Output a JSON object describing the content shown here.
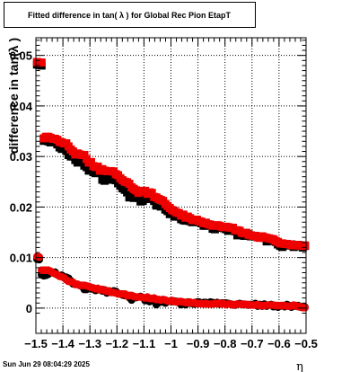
{
  "chart_data": {
    "type": "scatter",
    "title": "Fitted difference in tan( λ ) for Global Rec Pion EtapT",
    "xlabel": "η",
    "ylabel": "difference in tan(λ )",
    "xlim": [
      -1.5,
      -0.5
    ],
    "ylim": [
      -0.005,
      0.0535
    ],
    "x_ticks": [
      -1.5,
      -1.4,
      -1.3,
      -1.2,
      -1.1,
      -1.0,
      -0.9,
      -0.8,
      -0.7,
      -0.6,
      -0.5
    ],
    "x_tick_labels": [
      "−1.5",
      "−1.4",
      "−1.3",
      "−1.2",
      "−1.1",
      "−1",
      "−0.9",
      "−0.8",
      "−0.7",
      "−0.6",
      "−0.5"
    ],
    "y_ticks": [
      0,
      0.01,
      0.02,
      0.03,
      0.04,
      0.05
    ],
    "y_tick_labels": [
      "0",
      "0.01",
      "0.02",
      "0.03",
      "0.04",
      "0.05"
    ],
    "grid": true,
    "legend": "none",
    "series": [
      {
        "marker": "square",
        "color": "#000000",
        "x": [
          -1.4958,
          -1.4875,
          -1.4792,
          -1.4708,
          -1.4625,
          -1.4542,
          -1.4458,
          -1.4375,
          -1.4292,
          -1.4208,
          -1.4125,
          -1.4042,
          -1.3958,
          -1.3875,
          -1.3792,
          -1.3708,
          -1.3625,
          -1.3542,
          -1.3458,
          -1.3375,
          -1.3292,
          -1.3208,
          -1.3125,
          -1.3042,
          -1.2958,
          -1.2875,
          -1.2792,
          -1.2708,
          -1.2625,
          -1.2542,
          -1.2458,
          -1.2375,
          -1.2292,
          -1.2208,
          -1.2125,
          -1.2042,
          -1.1958,
          -1.1875,
          -1.1792,
          -1.1708,
          -1.1625,
          -1.1542,
          -1.1458,
          -1.1375,
          -1.1292,
          -1.1208,
          -1.1125,
          -1.1042,
          -1.0958,
          -1.0875,
          -1.0792,
          -1.0708,
          -1.0625,
          -1.0542,
          -1.0458,
          -1.0375,
          -1.0292,
          -1.0208,
          -1.0125,
          -1.0042,
          -0.9958,
          -0.9875,
          -0.9792,
          -0.9708,
          -0.9625,
          -0.9542,
          -0.9458,
          -0.9375,
          -0.9292,
          -0.9208,
          -0.9125,
          -0.9042,
          -0.8958,
          -0.8875,
          -0.8792,
          -0.8708,
          -0.8625,
          -0.8542,
          -0.8458,
          -0.8375,
          -0.8292,
          -0.8208,
          -0.8125,
          -0.8042,
          -0.7958,
          -0.7875,
          -0.7792,
          -0.7708,
          -0.7625,
          -0.7542,
          -0.7458,
          -0.7375,
          -0.7292,
          -0.7208,
          -0.7125,
          -0.7042,
          -0.6958,
          -0.6875,
          -0.6792,
          -0.6708,
          -0.6625,
          -0.6542,
          -0.6458,
          -0.6375,
          -0.6292,
          -0.6208,
          -0.6125,
          -0.6042,
          -0.5958,
          -0.5875,
          -0.5792,
          -0.5708,
          -0.5625,
          -0.5542,
          -0.5458,
          -0.5375,
          -0.5292,
          -0.5208,
          -0.5125,
          -0.5042
        ],
        "y": [
          0.0482,
          0.0481,
          0.048,
          0.0331,
          0.0334,
          0.033,
          0.0328,
          0.0331,
          0.0329,
          0.0324,
          0.0318,
          0.0315,
          0.0316,
          0.0311,
          0.0303,
          0.03,
          0.03,
          0.0293,
          0.0288,
          0.0295,
          0.0292,
          0.0282,
          0.0279,
          0.0272,
          0.0274,
          0.0269,
          0.0267,
          0.0268,
          0.0269,
          0.0254,
          0.0252,
          0.0255,
          0.0255,
          0.0254,
          0.0255,
          0.0253,
          0.0247,
          0.0242,
          0.0237,
          0.0234,
          0.0229,
          0.0219,
          0.022,
          0.0218,
          0.0221,
          0.0218,
          0.0211,
          0.0212,
          0.0216,
          0.0217,
          0.0219,
          0.0216,
          0.0212,
          0.0203,
          0.0204,
          0.0201,
          0.0203,
          0.0195,
          0.0192,
          0.0186,
          0.0187,
          0.0181,
          0.0185,
          0.0181,
          0.0176,
          0.0174,
          0.0173,
          0.0176,
          0.0172,
          0.017,
          0.0174,
          0.0173,
          0.017,
          0.0168,
          0.0163,
          0.0163,
          0.0165,
          0.0165,
          0.0157,
          0.0156,
          0.0159,
          0.0159,
          0.0159,
          0.0158,
          0.0156,
          0.0153,
          0.0156,
          0.0156,
          0.0152,
          0.0144,
          0.015,
          0.0147,
          0.0143,
          0.0144,
          0.0146,
          0.0142,
          0.0142,
          0.0142,
          0.0141,
          0.0142,
          0.0141,
          0.0139,
          0.0132,
          0.0133,
          0.0135,
          0.0134,
          0.0131,
          0.0126,
          0.0123,
          0.0121,
          0.0126,
          0.0124,
          0.0124,
          0.0126,
          0.0121,
          0.0123,
          0.0125,
          0.0123,
          0.012,
          0.0123
        ]
      },
      {
        "marker": "square",
        "color": "#ee0000",
        "x": [
          -1.4958,
          -1.4875,
          -1.4792,
          -1.4708,
          -1.4625,
          -1.4542,
          -1.4458,
          -1.4375,
          -1.4292,
          -1.4208,
          -1.4125,
          -1.4042,
          -1.3958,
          -1.3875,
          -1.3792,
          -1.3708,
          -1.3625,
          -1.3542,
          -1.3458,
          -1.3375,
          -1.3292,
          -1.3208,
          -1.3125,
          -1.3042,
          -1.2958,
          -1.2875,
          -1.2792,
          -1.2708,
          -1.2625,
          -1.2542,
          -1.2458,
          -1.2375,
          -1.2292,
          -1.2208,
          -1.2125,
          -1.2042,
          -1.1958,
          -1.1875,
          -1.1792,
          -1.1708,
          -1.1625,
          -1.1542,
          -1.1458,
          -1.1375,
          -1.1292,
          -1.1208,
          -1.1125,
          -1.1042,
          -1.0958,
          -1.0875,
          -1.0792,
          -1.0708,
          -1.0625,
          -1.0542,
          -1.0458,
          -1.0375,
          -1.0292,
          -1.0208,
          -1.0125,
          -1.0042,
          -0.9958,
          -0.9875,
          -0.9792,
          -0.9708,
          -0.9625,
          -0.9542,
          -0.9458,
          -0.9375,
          -0.9292,
          -0.9208,
          -0.9125,
          -0.9042,
          -0.8958,
          -0.8875,
          -0.8792,
          -0.8708,
          -0.8625,
          -0.8542,
          -0.8458,
          -0.8375,
          -0.8292,
          -0.8208,
          -0.8125,
          -0.8042,
          -0.7958,
          -0.7875,
          -0.7792,
          -0.7708,
          -0.7625,
          -0.7542,
          -0.7458,
          -0.7375,
          -0.7292,
          -0.7208,
          -0.7125,
          -0.7042,
          -0.6958,
          -0.6875,
          -0.6792,
          -0.6708,
          -0.6625,
          -0.6542,
          -0.6458,
          -0.6375,
          -0.6292,
          -0.6208,
          -0.6125,
          -0.6042,
          -0.5958,
          -0.5875,
          -0.5792,
          -0.5708,
          -0.5625,
          -0.5542,
          -0.5458,
          -0.5375,
          -0.5292,
          -0.5208,
          -0.5125,
          -0.5042
        ],
        "y": [
          0.0487,
          0.0486,
          0.0486,
          0.0336,
          0.0339,
          0.0339,
          0.0337,
          0.0335,
          0.0335,
          0.0333,
          0.0329,
          0.0328,
          0.0326,
          0.0326,
          0.032,
          0.0314,
          0.031,
          0.0304,
          0.0306,
          0.0304,
          0.0303,
          0.0303,
          0.0295,
          0.0288,
          0.0289,
          0.0281,
          0.0279,
          0.028,
          0.0272,
          0.0275,
          0.0272,
          0.0271,
          0.0271,
          0.0271,
          0.027,
          0.0265,
          0.0263,
          0.0257,
          0.0253,
          0.025,
          0.0249,
          0.0246,
          0.0239,
          0.0236,
          0.0233,
          0.0228,
          0.0231,
          0.0232,
          0.0232,
          0.0226,
          0.0229,
          0.0228,
          0.022,
          0.0219,
          0.0216,
          0.0214,
          0.0212,
          0.0206,
          0.0202,
          0.0198,
          0.0194,
          0.0192,
          0.0189,
          0.0188,
          0.0183,
          0.0185,
          0.0179,
          0.0181,
          0.0178,
          0.0174,
          0.0175,
          0.0175,
          0.0172,
          0.0171,
          0.0168,
          0.0169,
          0.0166,
          0.0165,
          0.0163,
          0.0163,
          0.0164,
          0.0163,
          0.0161,
          0.016,
          0.0161,
          0.016,
          0.0159,
          0.0159,
          0.0154,
          0.0154,
          0.0153,
          0.0149,
          0.0148,
          0.0149,
          0.0145,
          0.0144,
          0.0143,
          0.0143,
          0.014,
          0.0139,
          0.0142,
          0.014,
          0.0139,
          0.0138,
          0.0137,
          0.0136,
          0.0133,
          0.0131,
          0.0128,
          0.0128,
          0.0127,
          0.0127,
          0.0126,
          0.0125,
          0.0124,
          0.0125,
          0.0124,
          0.0124,
          0.0123,
          0.0124
        ]
      },
      {
        "marker": "circle",
        "color": "#000000",
        "x": [
          -1.4958,
          -1.4875,
          -1.4792,
          -1.4708,
          -1.4625,
          -1.4542,
          -1.4458,
          -1.4375,
          -1.4292,
          -1.4208,
          -1.4125,
          -1.4042,
          -1.3958,
          -1.3875,
          -1.3792,
          -1.3708,
          -1.3625,
          -1.3542,
          -1.3458,
          -1.3375,
          -1.3292,
          -1.3208,
          -1.3125,
          -1.3042,
          -1.2958,
          -1.2875,
          -1.2792,
          -1.2708,
          -1.2625,
          -1.2542,
          -1.2458,
          -1.2375,
          -1.2292,
          -1.2208,
          -1.2125,
          -1.2042,
          -1.1958,
          -1.1875,
          -1.1792,
          -1.1708,
          -1.1625,
          -1.1542,
          -1.1458,
          -1.1375,
          -1.1292,
          -1.1208,
          -1.1125,
          -1.1042,
          -1.0958,
          -1.0875,
          -1.0792,
          -1.0708,
          -1.0625,
          -1.0542,
          -1.0458,
          -1.0375,
          -1.0292,
          -1.0208,
          -1.0125,
          -1.0042,
          -0.9958,
          -0.9875,
          -0.9792,
          -0.9708,
          -0.9625,
          -0.9542,
          -0.9458,
          -0.9375,
          -0.9292,
          -0.9208,
          -0.9125,
          -0.9042,
          -0.8958,
          -0.8875,
          -0.8792,
          -0.8708,
          -0.8625,
          -0.8542,
          -0.8458,
          -0.8375,
          -0.8292,
          -0.8208,
          -0.8125,
          -0.8042,
          -0.7958,
          -0.7875,
          -0.7792,
          -0.7708,
          -0.7625,
          -0.7542,
          -0.7458,
          -0.7375,
          -0.7292,
          -0.7208,
          -0.7125,
          -0.7042,
          -0.6958,
          -0.6875,
          -0.6792,
          -0.6708,
          -0.6625,
          -0.6542,
          -0.6458,
          -0.6375,
          -0.6292,
          -0.6208,
          -0.6125,
          -0.6042,
          -0.5958,
          -0.5875,
          -0.5792,
          -0.5708,
          -0.5625,
          -0.5542,
          -0.5458,
          -0.5375,
          -0.5292,
          -0.5208,
          -0.5125,
          -0.5042
        ],
        "y": [
          0.0097,
          0.0096,
          0.0066,
          0.0064,
          0.0065,
          0.0067,
          0.0071,
          0.007,
          0.0071,
          0.0066,
          0.0064,
          0.0065,
          0.0062,
          0.0061,
          0.0059,
          0.0054,
          0.0048,
          0.0047,
          0.0047,
          0.0045,
          0.0043,
          0.0037,
          0.0037,
          0.0041,
          0.0038,
          0.0038,
          0.0035,
          0.0037,
          0.0036,
          0.0034,
          0.0036,
          0.003,
          0.0034,
          0.0032,
          0.0034,
          0.0033,
          0.0029,
          0.0028,
          0.0026,
          0.0025,
          0.0025,
          0.0021,
          0.0016,
          0.0023,
          0.0021,
          0.0022,
          0.0023,
          0.0021,
          0.0015,
          0.0016,
          0.0013,
          0.0018,
          0.0017,
          0.0007,
          0.0011,
          0.0012,
          0.0015,
          0.001,
          0.0013,
          0.0014,
          0.0013,
          0.0014,
          0.0013,
          0.0011,
          0.0007,
          0.0008,
          0.0007,
          0.0012,
          0.001,
          0.0009,
          0.0008,
          0.0012,
          0.0012,
          0.0009,
          0.0011,
          0.0011,
          0.0009,
          0.0012,
          0.0011,
          0.0009,
          0.0011,
          0.0008,
          0.001,
          0.001,
          0.001,
          0.0009,
          0.0008,
          0.0007,
          0.0006,
          0.0008,
          0.0009,
          0.0008,
          0.0007,
          0.0007,
          0.0006,
          0.0007,
          0.0007,
          0.0009,
          0.0004,
          0.0007,
          0.0004,
          0.0008,
          0.0004,
          0.0006,
          0.0007,
          0.0003,
          0.0005,
          0.0002,
          0.0004,
          0.0005,
          0.0003,
          0.0007,
          0.0005,
          0.0002,
          0.0005,
          0.0004,
          0.0005,
          0.0002,
          0.0002,
          0.0002
        ]
      },
      {
        "marker": "circle",
        "color": "#ee0000",
        "x": [
          -1.4958,
          -1.4875,
          -1.4792,
          -1.4708,
          -1.4625,
          -1.4542,
          -1.4458,
          -1.4375,
          -1.4292,
          -1.4208,
          -1.4125,
          -1.4042,
          -1.3958,
          -1.3875,
          -1.3792,
          -1.3708,
          -1.3625,
          -1.3542,
          -1.3458,
          -1.3375,
          -1.3292,
          -1.3208,
          -1.3125,
          -1.3042,
          -1.2958,
          -1.2875,
          -1.2792,
          -1.2708,
          -1.2625,
          -1.2542,
          -1.2458,
          -1.2375,
          -1.2292,
          -1.2208,
          -1.2125,
          -1.2042,
          -1.1958,
          -1.1875,
          -1.1792,
          -1.1708,
          -1.1625,
          -1.1542,
          -1.1458,
          -1.1375,
          -1.1292,
          -1.1208,
          -1.1125,
          -1.1042,
          -1.0958,
          -1.0875,
          -1.0792,
          -1.0708,
          -1.0625,
          -1.0542,
          -1.0458,
          -1.0375,
          -1.0292,
          -1.0208,
          -1.0125,
          -1.0042,
          -0.9958,
          -0.9875,
          -0.9792,
          -0.9708,
          -0.9625,
          -0.9542,
          -0.9458,
          -0.9375,
          -0.9292,
          -0.9208,
          -0.9125,
          -0.9042,
          -0.8958,
          -0.8875,
          -0.8792,
          -0.8708,
          -0.8625,
          -0.8542,
          -0.8458,
          -0.8375,
          -0.8292,
          -0.8208,
          -0.8125,
          -0.8042,
          -0.7958,
          -0.7875,
          -0.7792,
          -0.7708,
          -0.7625,
          -0.7542,
          -0.7458,
          -0.7375,
          -0.7292,
          -0.7208,
          -0.7125,
          -0.7042,
          -0.6958,
          -0.6875,
          -0.6792,
          -0.6708,
          -0.6625,
          -0.6542,
          -0.6458,
          -0.6375,
          -0.6292,
          -0.6208,
          -0.6125,
          -0.6042,
          -0.5958,
          -0.5875,
          -0.5792,
          -0.5708,
          -0.5625,
          -0.5542,
          -0.5458,
          -0.5375,
          -0.5292,
          -0.5208,
          -0.5125,
          -0.5042
        ],
        "y": [
          0.0102,
          0.0101,
          0.0075,
          0.0075,
          0.0075,
          0.0075,
          0.0073,
          0.007,
          0.0068,
          0.0066,
          0.0063,
          0.0062,
          0.006,
          0.0056,
          0.0053,
          0.0052,
          0.0051,
          0.0047,
          0.0047,
          0.0045,
          0.0045,
          0.0045,
          0.0044,
          0.0043,
          0.0041,
          0.004,
          0.0038,
          0.0039,
          0.0036,
          0.0037,
          0.0035,
          0.0033,
          0.0034,
          0.0031,
          0.0031,
          0.003,
          0.0028,
          0.0028,
          0.0028,
          0.0028,
          0.0024,
          0.0025,
          0.0025,
          0.0023,
          0.0022,
          0.0022,
          0.0022,
          0.0021,
          0.002,
          0.0022,
          0.0019,
          0.0019,
          0.002,
          0.0017,
          0.0017,
          0.0016,
          0.0017,
          0.0016,
          0.0014,
          0.0014,
          0.0015,
          0.0013,
          0.0012,
          0.0013,
          0.0013,
          0.0012,
          0.0011,
          0.0011,
          0.0012,
          0.001,
          0.0011,
          0.0009,
          0.0009,
          0.0009,
          0.0008,
          0.0009,
          0.0008,
          0.0008,
          0.0008,
          0.0009,
          0.0009,
          0.001,
          0.0008,
          0.0009,
          0.0007,
          0.0008,
          0.0008,
          0.0006,
          0.0007,
          0.0008,
          0.0008,
          0.0007,
          0.0008,
          0.0007,
          0.0007,
          0.0006,
          0.0006,
          0.0006,
          0.0007,
          0.0005,
          0.0005,
          0.0005,
          0.0006,
          0.0006,
          0.0006,
          0.0006,
          0.0005,
          0.0005,
          0.0005,
          0.0005,
          0.0005,
          0.0004,
          0.0004,
          0.0004,
          0.0006,
          0.0005,
          0.0003,
          0.0003,
          0.0001,
          0.0001
        ]
      }
    ]
  },
  "footer": {
    "timestamp": "Sun Jun 29 08:04:29 2025"
  }
}
